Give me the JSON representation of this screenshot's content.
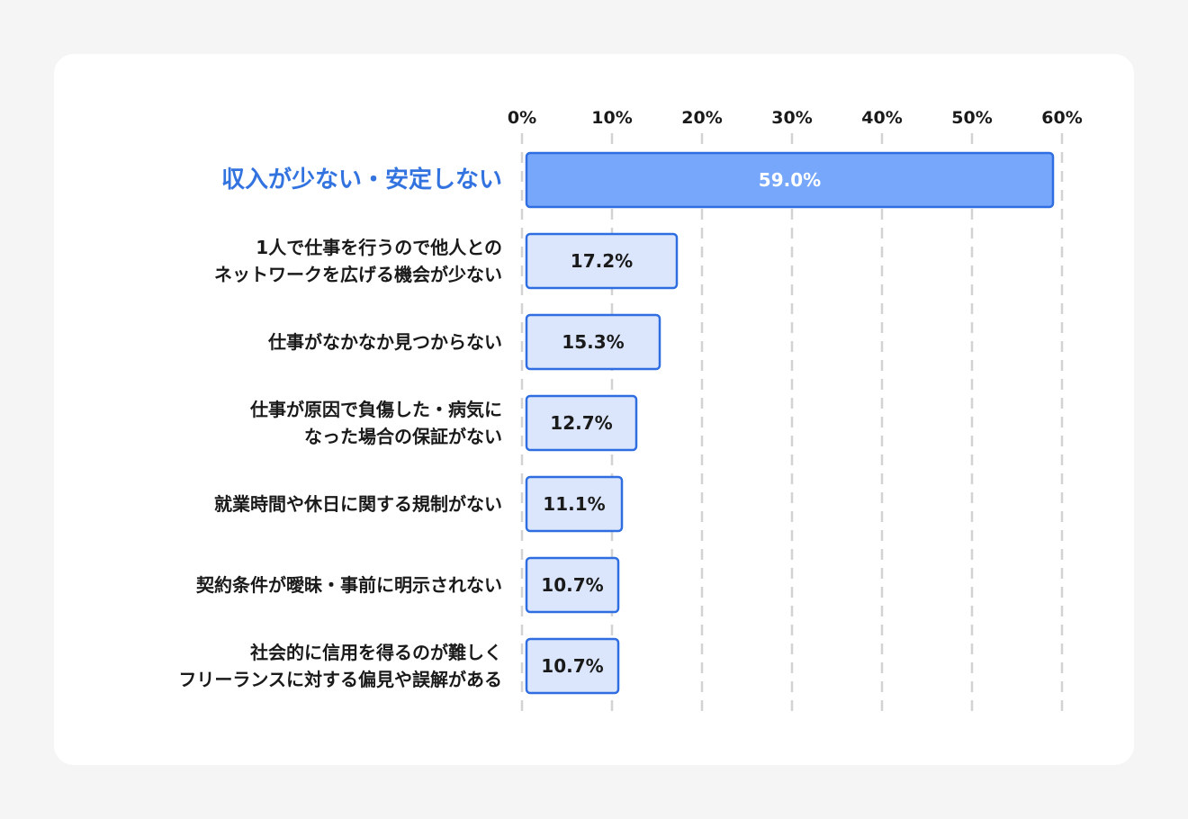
{
  "chart_data": {
    "type": "bar",
    "orientation": "horizontal",
    "xlim": [
      0,
      60
    ],
    "x_ticks": [
      "0%",
      "10%",
      "20%",
      "30%",
      "40%",
      "50%",
      "60%"
    ],
    "tick_values": [
      0,
      10,
      20,
      30,
      40,
      50,
      60
    ],
    "grid": "dashed vertical",
    "categories": [
      {
        "lines": [
          "収入が少ない・安定しない"
        ],
        "highlight": true
      },
      {
        "lines": [
          "1人で仕事を行うので他人との",
          "ネットワークを広げる機会が少ない"
        ],
        "highlight": false
      },
      {
        "lines": [
          "仕事がなかなか見つからない"
        ],
        "highlight": false
      },
      {
        "lines": [
          "仕事が原因で負傷した・病気に",
          "なった場合の保証がない"
        ],
        "highlight": false
      },
      {
        "lines": [
          "就業時間や休日に関する規制がない"
        ],
        "highlight": false
      },
      {
        "lines": [
          "契約条件が曖昧・事前に明示されない"
        ],
        "highlight": false
      },
      {
        "lines": [
          "社会的に信用を得るのが難しく",
          "フリーランスに対する偏見や誤解がある"
        ],
        "highlight": false
      }
    ],
    "values": [
      59.0,
      17.2,
      15.3,
      12.7,
      11.1,
      10.7,
      10.7
    ],
    "value_labels": [
      "59.0%",
      "17.2%",
      "15.3%",
      "12.7%",
      "11.1%",
      "10.7%",
      "10.7%"
    ]
  },
  "colors": {
    "background": "#f6f5f6",
    "card": "#ffffff",
    "highlight_fill": "#76a7fb",
    "highlight_text": "#3273e0",
    "bar_fill": "#dbe6fd",
    "bar_stroke": "#2f6ee0",
    "grid": "#d3d3d3",
    "text": "#1a1a1a",
    "highlight_value_text": "#ffffff"
  }
}
